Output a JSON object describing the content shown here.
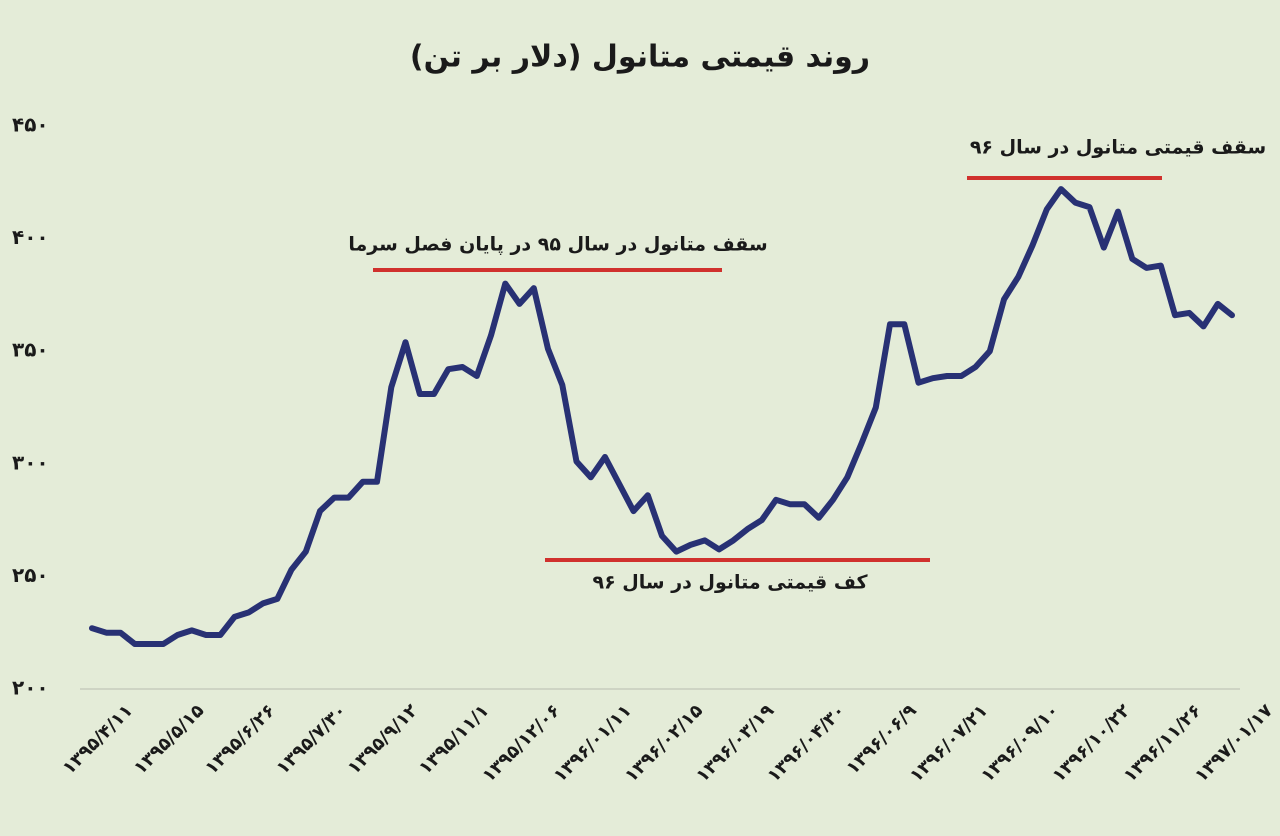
{
  "chart_data": {
    "type": "line",
    "title": "روند قیمتی متانول (دلار بر تن)",
    "color": "#283174",
    "categories": [
      "۱۳۹۵/۴/۱۱",
      null,
      null,
      null,
      null,
      "۱۳۹۵/۵/۱۵",
      null,
      null,
      null,
      null,
      "۱۳۹۵/۶/۲۶",
      null,
      null,
      null,
      null,
      "۱۳۹۵/۷/۳۰",
      null,
      null,
      null,
      null,
      "۱۳۹۵/۹/۱۲",
      null,
      null,
      null,
      null,
      "۱۳۹۵/۱۱/۱",
      null,
      null,
      null,
      null,
      "۱۳۹۵/۱۲/۰۶",
      null,
      null,
      null,
      null,
      "۱۳۹۶/۰۱/۱۱",
      null,
      null,
      null,
      null,
      "۱۳۹۶/۰۲/۱۵",
      null,
      null,
      null,
      null,
      "۱۳۹۶/۰۳/۱۹",
      null,
      null,
      null,
      null,
      "۱۳۹۶/۰۴/۳۰",
      null,
      null,
      null,
      null,
      "۱۳۹۶/۰۶/۹",
      null,
      null,
      null,
      null,
      "۱۳۹۶/۰۷/۲۱",
      null,
      null,
      null,
      null,
      "۱۳۹۶/۰۹/۱۰",
      null,
      null,
      null,
      null,
      "۱۳۹۶/۱۰/۲۲",
      null,
      null,
      null,
      null,
      "۱۳۹۶/۱۱/۲۶",
      null,
      null,
      null,
      null,
      "۱۳۹۷/۰۱/۱۷"
    ],
    "values": [
      227,
      225,
      225,
      220,
      220,
      220,
      224,
      226,
      224,
      224,
      232,
      234,
      238,
      240,
      253,
      261,
      279,
      285,
      285,
      292,
      292,
      334,
      354,
      331,
      331,
      342,
      343,
      339,
      357,
      380,
      371,
      378,
      351,
      335,
      301,
      294,
      303,
      291,
      279,
      286,
      268,
      261,
      264,
      266,
      262,
      266,
      271,
      275,
      284,
      282,
      282,
      276,
      284,
      294,
      309,
      325,
      362,
      362,
      336,
      338,
      339,
      339,
      343,
      350,
      373,
      383,
      397,
      413,
      422,
      416,
      414,
      396,
      412,
      391,
      387,
      388,
      366,
      367,
      361,
      371,
      366
    ],
    "ylim": [
      200,
      450
    ],
    "yticks": [
      {
        "value": 200,
        "label": "۲۰۰"
      },
      {
        "value": 250,
        "label": "۲۵۰"
      },
      {
        "value": 300,
        "label": "۳۰۰"
      },
      {
        "value": 350,
        "label": "۳۵۰"
      },
      {
        "value": 400,
        "label": "۴۰۰"
      },
      {
        "value": 450,
        "label": "۴۵۰"
      }
    ],
    "annotations": [
      "سقف متانول در سال ۹۵ در پایان فصل سرما",
      "کف قیمتی متانول در سال ۹۶",
      "سقف قیمتی متانول در سال ۹۶"
    ]
  }
}
